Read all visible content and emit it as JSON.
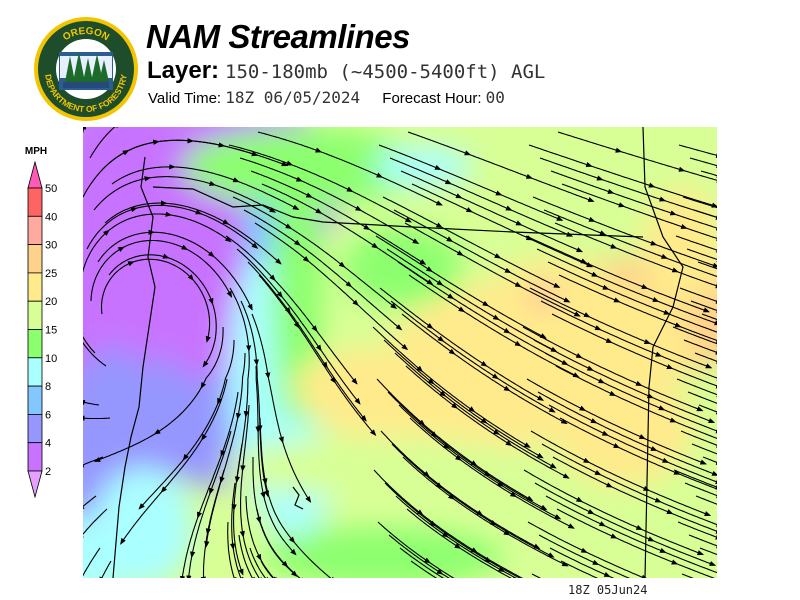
{
  "header": {
    "title": "NAM Streamlines",
    "layer_label": "Layer:",
    "layer_value": "150-180mb (~4500-5400ft) AGL",
    "valid_time_label": "Valid Time:",
    "valid_time_value": "18Z 06/05/2024",
    "forecast_hour_label": "Forecast Hour:",
    "forecast_hour_value": "00"
  },
  "logo": {
    "text_top": "OREGON",
    "text_bottom": "DEPARTMENT OF FORESTRY",
    "ring_color": "#f2c500",
    "fill_color": "#1d4d2a"
  },
  "legend": {
    "unit": "MPH",
    "ticks": [
      "50",
      "40",
      "30",
      "25",
      "20",
      "15",
      "10",
      "8",
      "6",
      "4",
      "2"
    ],
    "over_color": "#ff5ab4",
    "under_color": "#e6a0ff",
    "bins": [
      {
        "range": "40-50",
        "color": "#ff6464"
      },
      {
        "range": "30-40",
        "color": "#ffaaa0"
      },
      {
        "range": "25-30",
        "color": "#ffd28c"
      },
      {
        "range": "20-25",
        "color": "#ffeb8c"
      },
      {
        "range": "15-20",
        "color": "#d8ff96"
      },
      {
        "range": "10-15",
        "color": "#8cff6e"
      },
      {
        "range": "8-10",
        "color": "#aaffff"
      },
      {
        "range": "6-8",
        "color": "#82c8ff"
      },
      {
        "range": "4-6",
        "color": "#9696ff"
      },
      {
        "range": "2-4",
        "color": "#c873ff"
      }
    ]
  },
  "map": {
    "streamline_color": "#000000",
    "cyclone_center": "offshore Oregon coast"
  },
  "footer": {
    "timestamp": "18Z 05Jun24"
  }
}
